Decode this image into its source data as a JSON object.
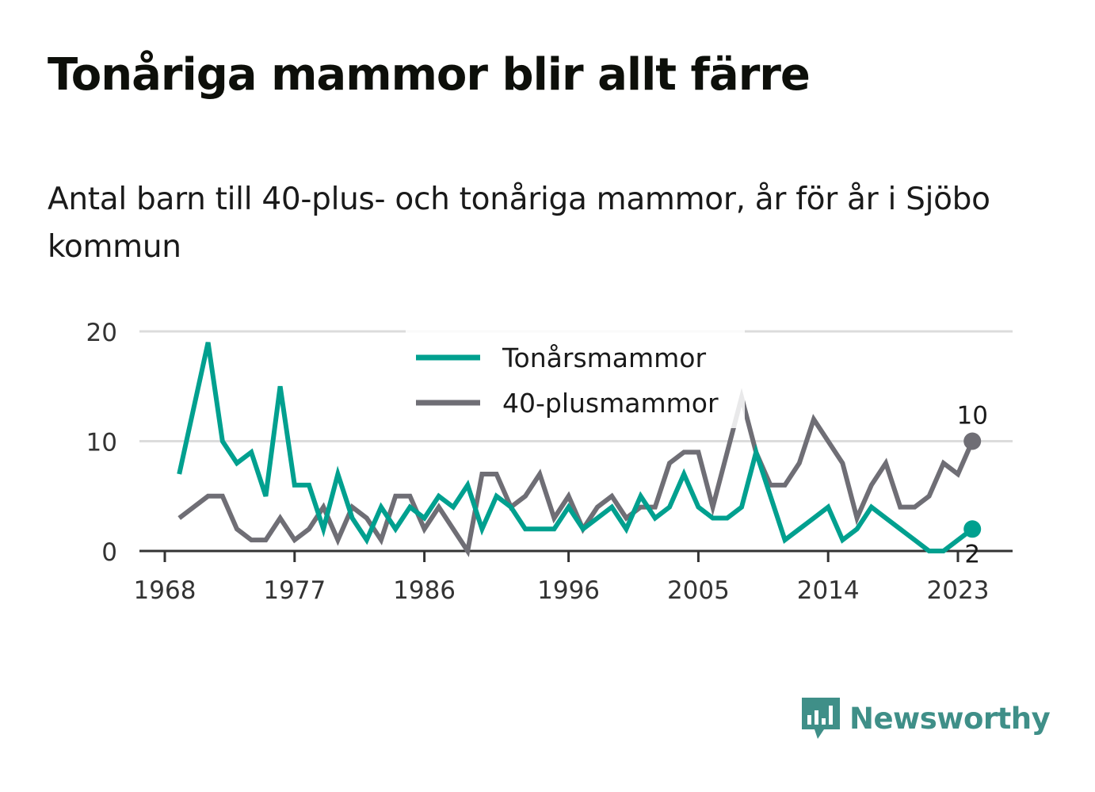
{
  "title": "Tonåriga mammor blir allt färre",
  "subtitle": "Antal barn till 40-plus- och tonåriga mammor, år för år i Sjöbo kommun",
  "brand": {
    "name": "Newsworthy",
    "icon": "bar-chart-speech-icon",
    "color": "#3f8f88"
  },
  "chart_data": {
    "type": "line",
    "ylim": [
      0,
      20
    ],
    "yticks": [
      0,
      10,
      20
    ],
    "xticks": [
      1968,
      1977,
      1986,
      1996,
      2005,
      2014,
      2023
    ],
    "grid": true,
    "legend": "top-center",
    "x": [
      1969,
      1970,
      1971,
      1972,
      1973,
      1974,
      1975,
      1976,
      1977,
      1978,
      1979,
      1980,
      1981,
      1982,
      1983,
      1984,
      1985,
      1986,
      1987,
      1988,
      1989,
      1990,
      1991,
      1992,
      1993,
      1994,
      1995,
      1996,
      1997,
      1998,
      1999,
      2000,
      2001,
      2002,
      2003,
      2004,
      2005,
      2006,
      2007,
      2008,
      2009,
      2010,
      2011,
      2012,
      2013,
      2014,
      2015,
      2016,
      2017,
      2018,
      2019,
      2020,
      2021,
      2022,
      2023,
      2024
    ],
    "series": [
      {
        "name": "Tonårsmammor",
        "color": "#00a08f",
        "values": [
          7,
          13,
          19,
          10,
          8,
          9,
          5,
          15,
          6,
          6,
          2,
          7,
          3,
          1,
          4,
          2,
          4,
          3,
          5,
          4,
          6,
          2,
          5,
          4,
          2,
          2,
          2,
          4,
          2,
          3,
          4,
          2,
          5,
          3,
          4,
          7,
          4,
          3,
          3,
          4,
          9,
          5,
          1,
          2,
          3,
          4,
          1,
          2,
          4,
          3,
          2,
          1,
          0,
          0,
          1,
          2
        ],
        "end_label": "2"
      },
      {
        "name": "40-plusmammor",
        "color": "#6f6e75",
        "values": [
          3,
          4,
          5,
          5,
          2,
          1,
          1,
          3,
          1,
          2,
          4,
          1,
          4,
          3,
          1,
          5,
          5,
          2,
          4,
          2,
          0,
          7,
          7,
          4,
          5,
          7,
          3,
          5,
          2,
          4,
          5,
          3,
          4,
          4,
          8,
          9,
          9,
          4,
          9,
          14,
          9,
          6,
          6,
          8,
          12,
          10,
          8,
          3,
          6,
          8,
          4,
          4,
          5,
          8,
          7,
          10
        ],
        "end_label": "10"
      }
    ]
  }
}
